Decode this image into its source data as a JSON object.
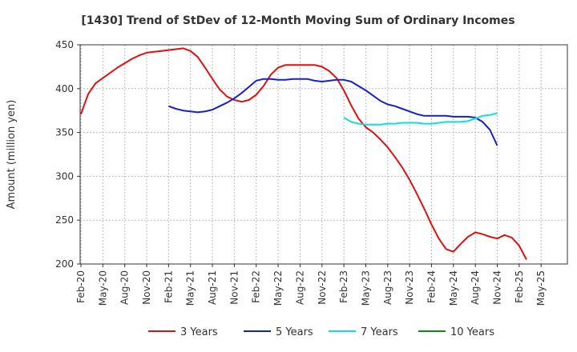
{
  "chart_data": {
    "type": "line",
    "title": "[1430]  Trend of StDev of 12-Month Moving Sum of Ordinary Incomes",
    "ylabel": "Amount (million yen)",
    "xlabel": "",
    "ylim": [
      200,
      450
    ],
    "yticks": [
      200,
      250,
      300,
      350,
      400,
      450
    ],
    "grid": true,
    "legend_position": "bottom",
    "x_tick_labels": [
      "Feb-20",
      "May-20",
      "Aug-20",
      "Nov-20",
      "Feb-21",
      "May-21",
      "Aug-21",
      "Nov-21",
      "Feb-22",
      "May-22",
      "Aug-22",
      "Nov-22",
      "Feb-23",
      "May-23",
      "Aug-23",
      "Nov-23",
      "Feb-24",
      "May-24",
      "Aug-24",
      "Nov-24",
      "Feb-25",
      "May-25"
    ],
    "series": [
      {
        "name": "3 Years",
        "color": "#dd1111",
        "x_start": "Feb-20",
        "values": [
          371,
          394,
          406,
          412,
          418,
          424,
          429,
          434,
          438,
          441,
          442,
          443,
          444,
          445,
          446,
          443,
          436,
          424,
          411,
          399,
          391,
          387,
          385,
          387,
          393,
          403,
          416,
          424,
          427,
          427,
          427,
          427,
          427,
          425,
          420,
          412,
          398,
          381,
          366,
          356,
          350,
          342,
          333,
          322,
          310,
          296,
          280,
          263,
          245,
          229,
          217,
          214,
          223,
          231,
          236,
          234,
          231,
          229,
          233,
          230,
          221,
          205
        ]
      },
      {
        "name": "5 Years",
        "color": "#1122cc",
        "x_start": "Feb-21",
        "values": [
          380,
          377,
          375,
          374,
          373,
          374,
          376,
          380,
          384,
          389,
          395,
          402,
          409,
          411,
          411,
          410,
          410,
          411,
          411,
          411,
          409,
          408,
          409,
          410,
          410,
          408,
          403,
          398,
          392,
          386,
          382,
          380,
          377,
          374,
          371,
          369,
          369,
          369,
          369,
          368,
          368,
          368,
          367,
          362,
          353,
          335
        ]
      },
      {
        "name": "7 Years",
        "color": "#11dddd",
        "x_start": "Feb-23",
        "values": [
          367,
          362,
          360,
          359,
          359,
          359,
          360,
          360,
          361,
          361,
          361,
          360,
          360,
          361,
          362,
          362,
          362,
          363,
          366,
          369,
          370,
          372
        ]
      },
      {
        "name": "10 Years",
        "color": "#118811",
        "x_start": "Feb-20",
        "values": []
      }
    ]
  }
}
